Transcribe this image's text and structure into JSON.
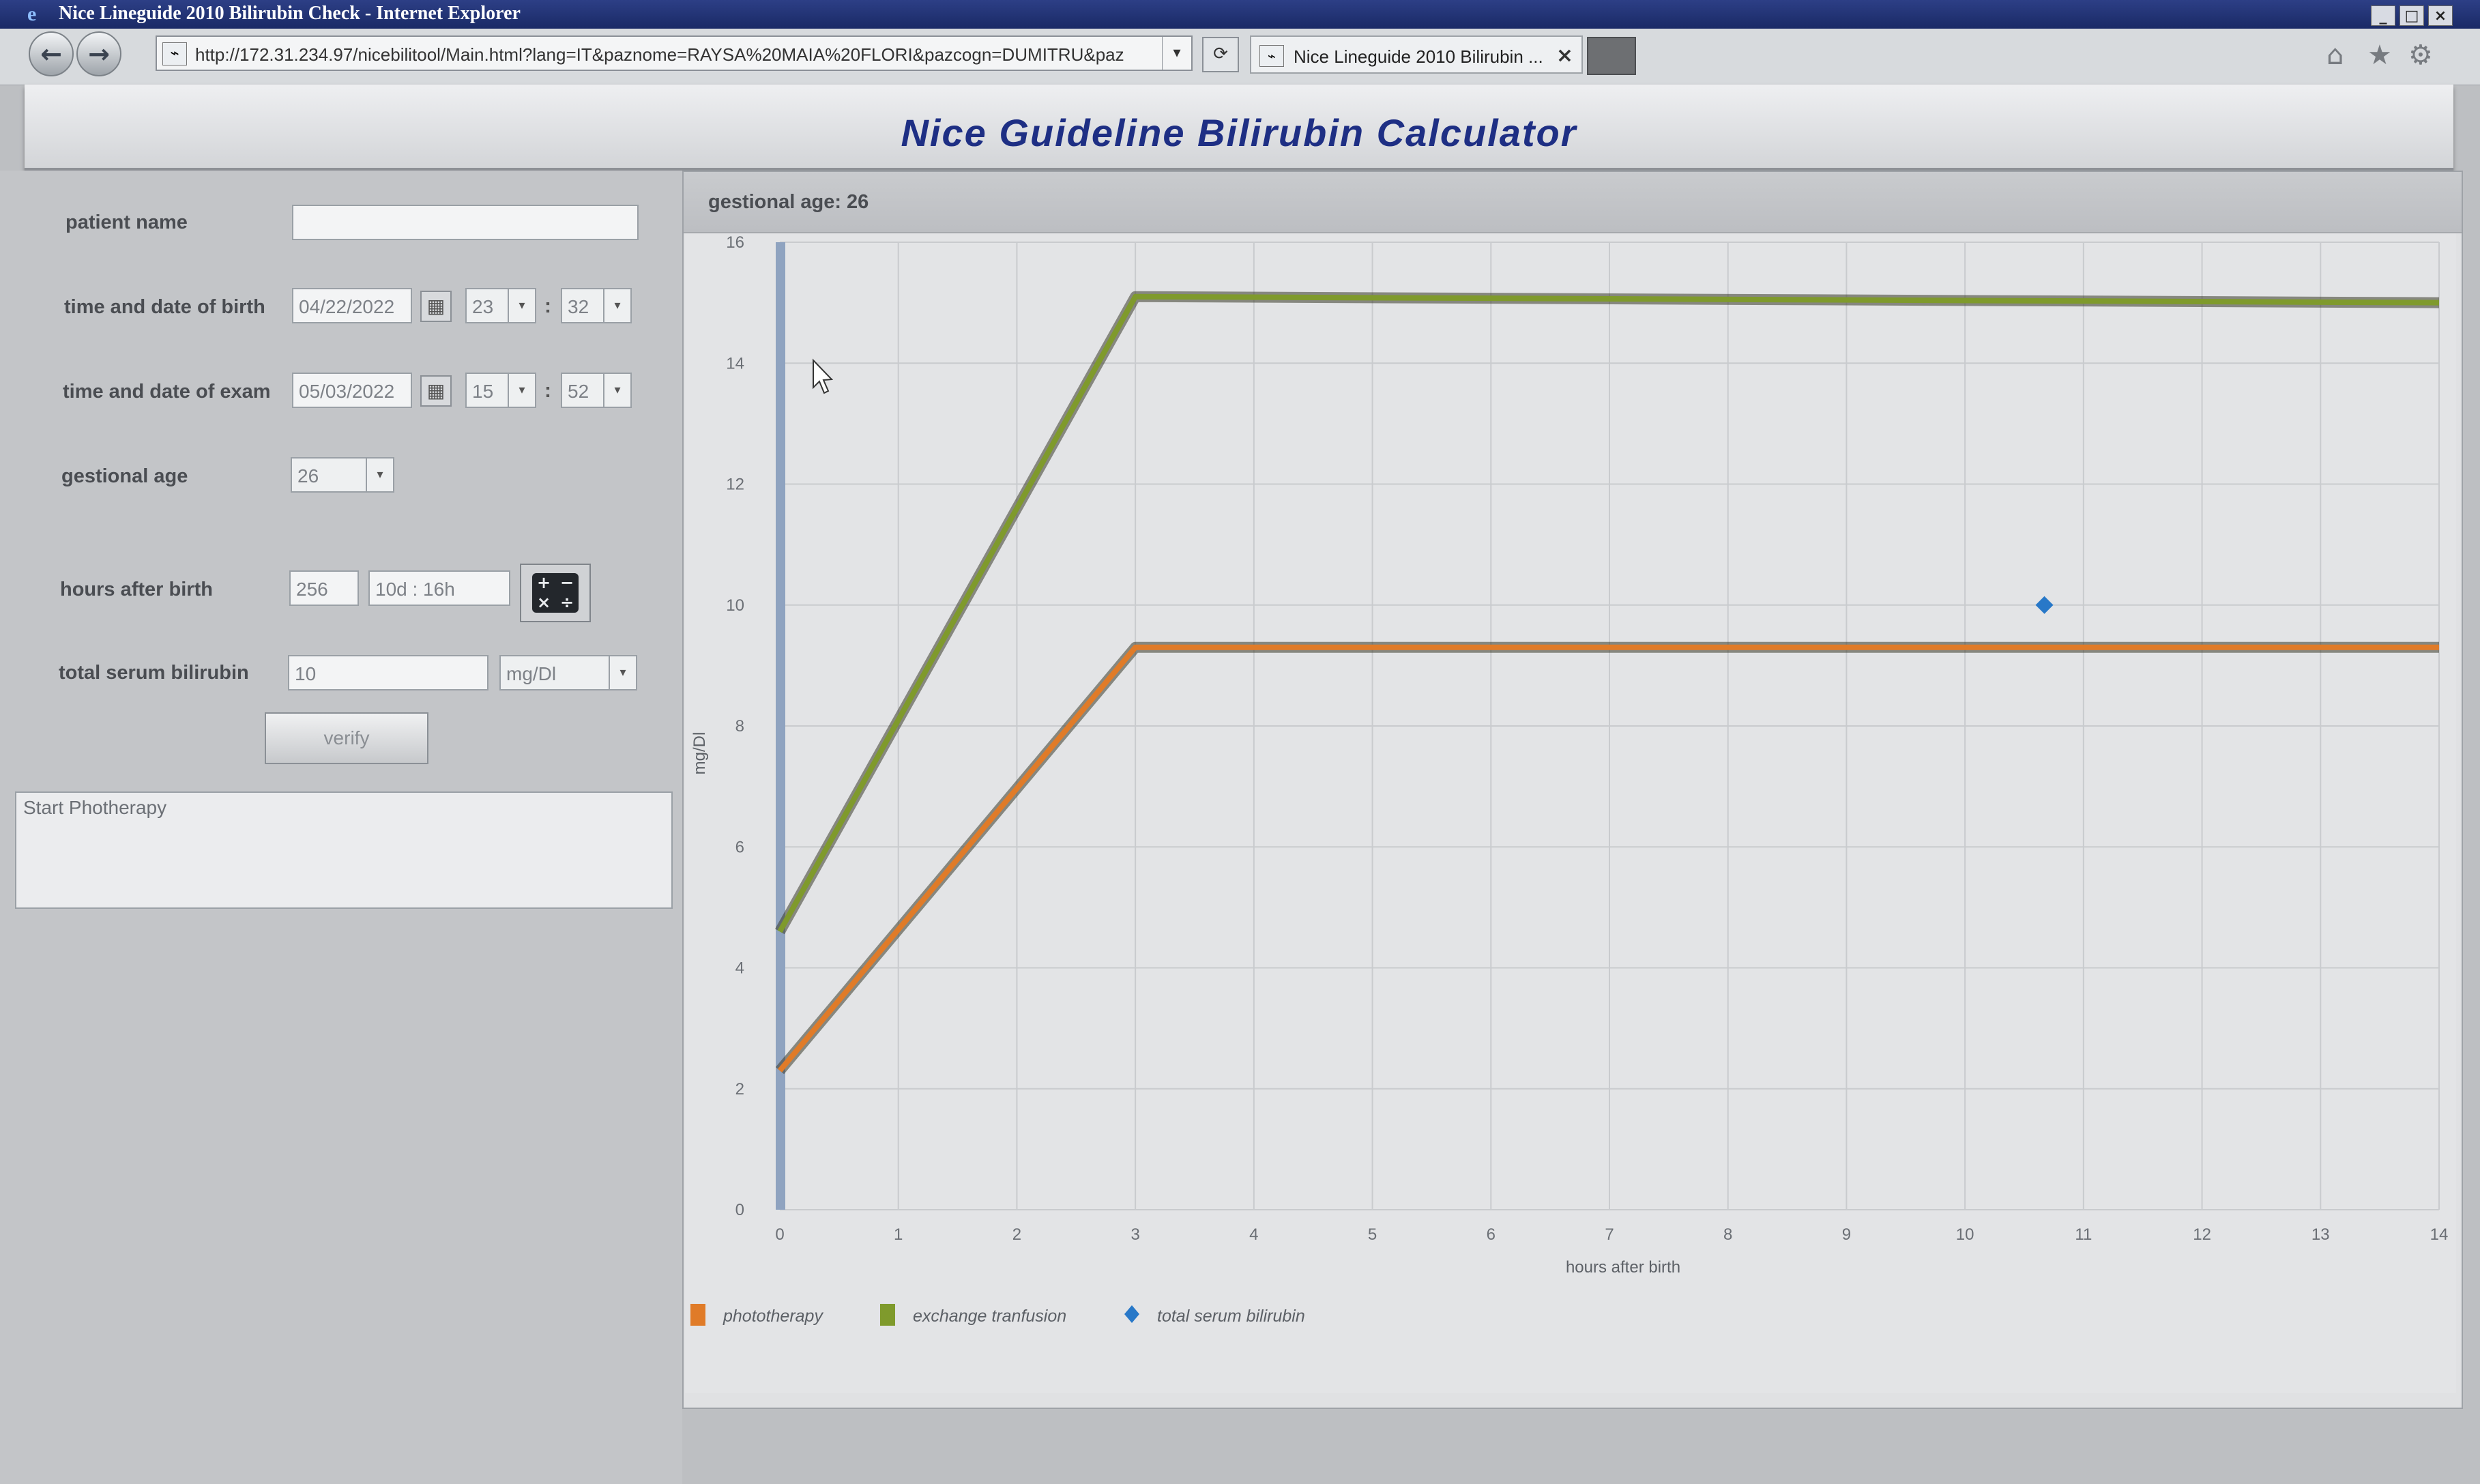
{
  "window": {
    "title": "Nice Lineguide 2010 Bilirubin Check - Internet Explorer",
    "url": "http://172.31.234.97/nicebilitool/Main.html?lang=IT&paznome=RAYSA%20MAIA%20FLORI&pazcogn=DUMITRU&paz",
    "tab_label": "Nice Lineguide 2010 Bilirubin ...",
    "controls": [
      "_",
      "□",
      "×"
    ]
  },
  "app": {
    "title": "Nice Guideline Bilirubin Calculator"
  },
  "form": {
    "patient_name_label": "patient name",
    "patient_name_value": "",
    "birth_label": "time and date of birth",
    "birth_date": "04/22/2022",
    "birth_hour": "23",
    "birth_minute": "32",
    "exam_label": "time and date of exam",
    "exam_date": "05/03/2022",
    "exam_hour": "15",
    "exam_minute": "52",
    "colon": ":",
    "gestational_age_label": "gestional age",
    "gestational_age_value": "26",
    "hours_label": "hours after birth",
    "hours_value": "256",
    "hours_formatted": "10d : 16h",
    "tsb_label": "total serum bilirubin",
    "tsb_value": "10",
    "tsb_unit": "mg/Dl",
    "verify_label": "verify",
    "result_text": "Start Photherapy"
  },
  "chart_panel": {
    "header": "gestional age: 26"
  },
  "chart_data": {
    "type": "line",
    "x": [
      0,
      3,
      14
    ],
    "xlabel": "hours after birth",
    "ylabel": "mg/Dl",
    "xlim": [
      0,
      14
    ],
    "ylim": [
      0,
      16
    ],
    "xticks": [
      0,
      1,
      2,
      3,
      4,
      5,
      6,
      7,
      8,
      9,
      10,
      11,
      12,
      13,
      14
    ],
    "yticks": [
      0,
      2,
      4,
      6,
      8,
      10,
      12,
      14,
      16
    ],
    "grid": true,
    "legend_position": "bottom-left",
    "series": [
      {
        "name": "phototherapy",
        "color": "#e07b28",
        "values": [
          2.3,
          9.3,
          9.3
        ]
      },
      {
        "name": "exchange tranfusion",
        "color": "#7f9a2c",
        "values": [
          4.6,
          15.1,
          15.0
        ]
      }
    ],
    "points": [
      {
        "name": "total serum bilirubin",
        "color": "#2878c8",
        "x": 10.67,
        "y": 10
      }
    ]
  }
}
